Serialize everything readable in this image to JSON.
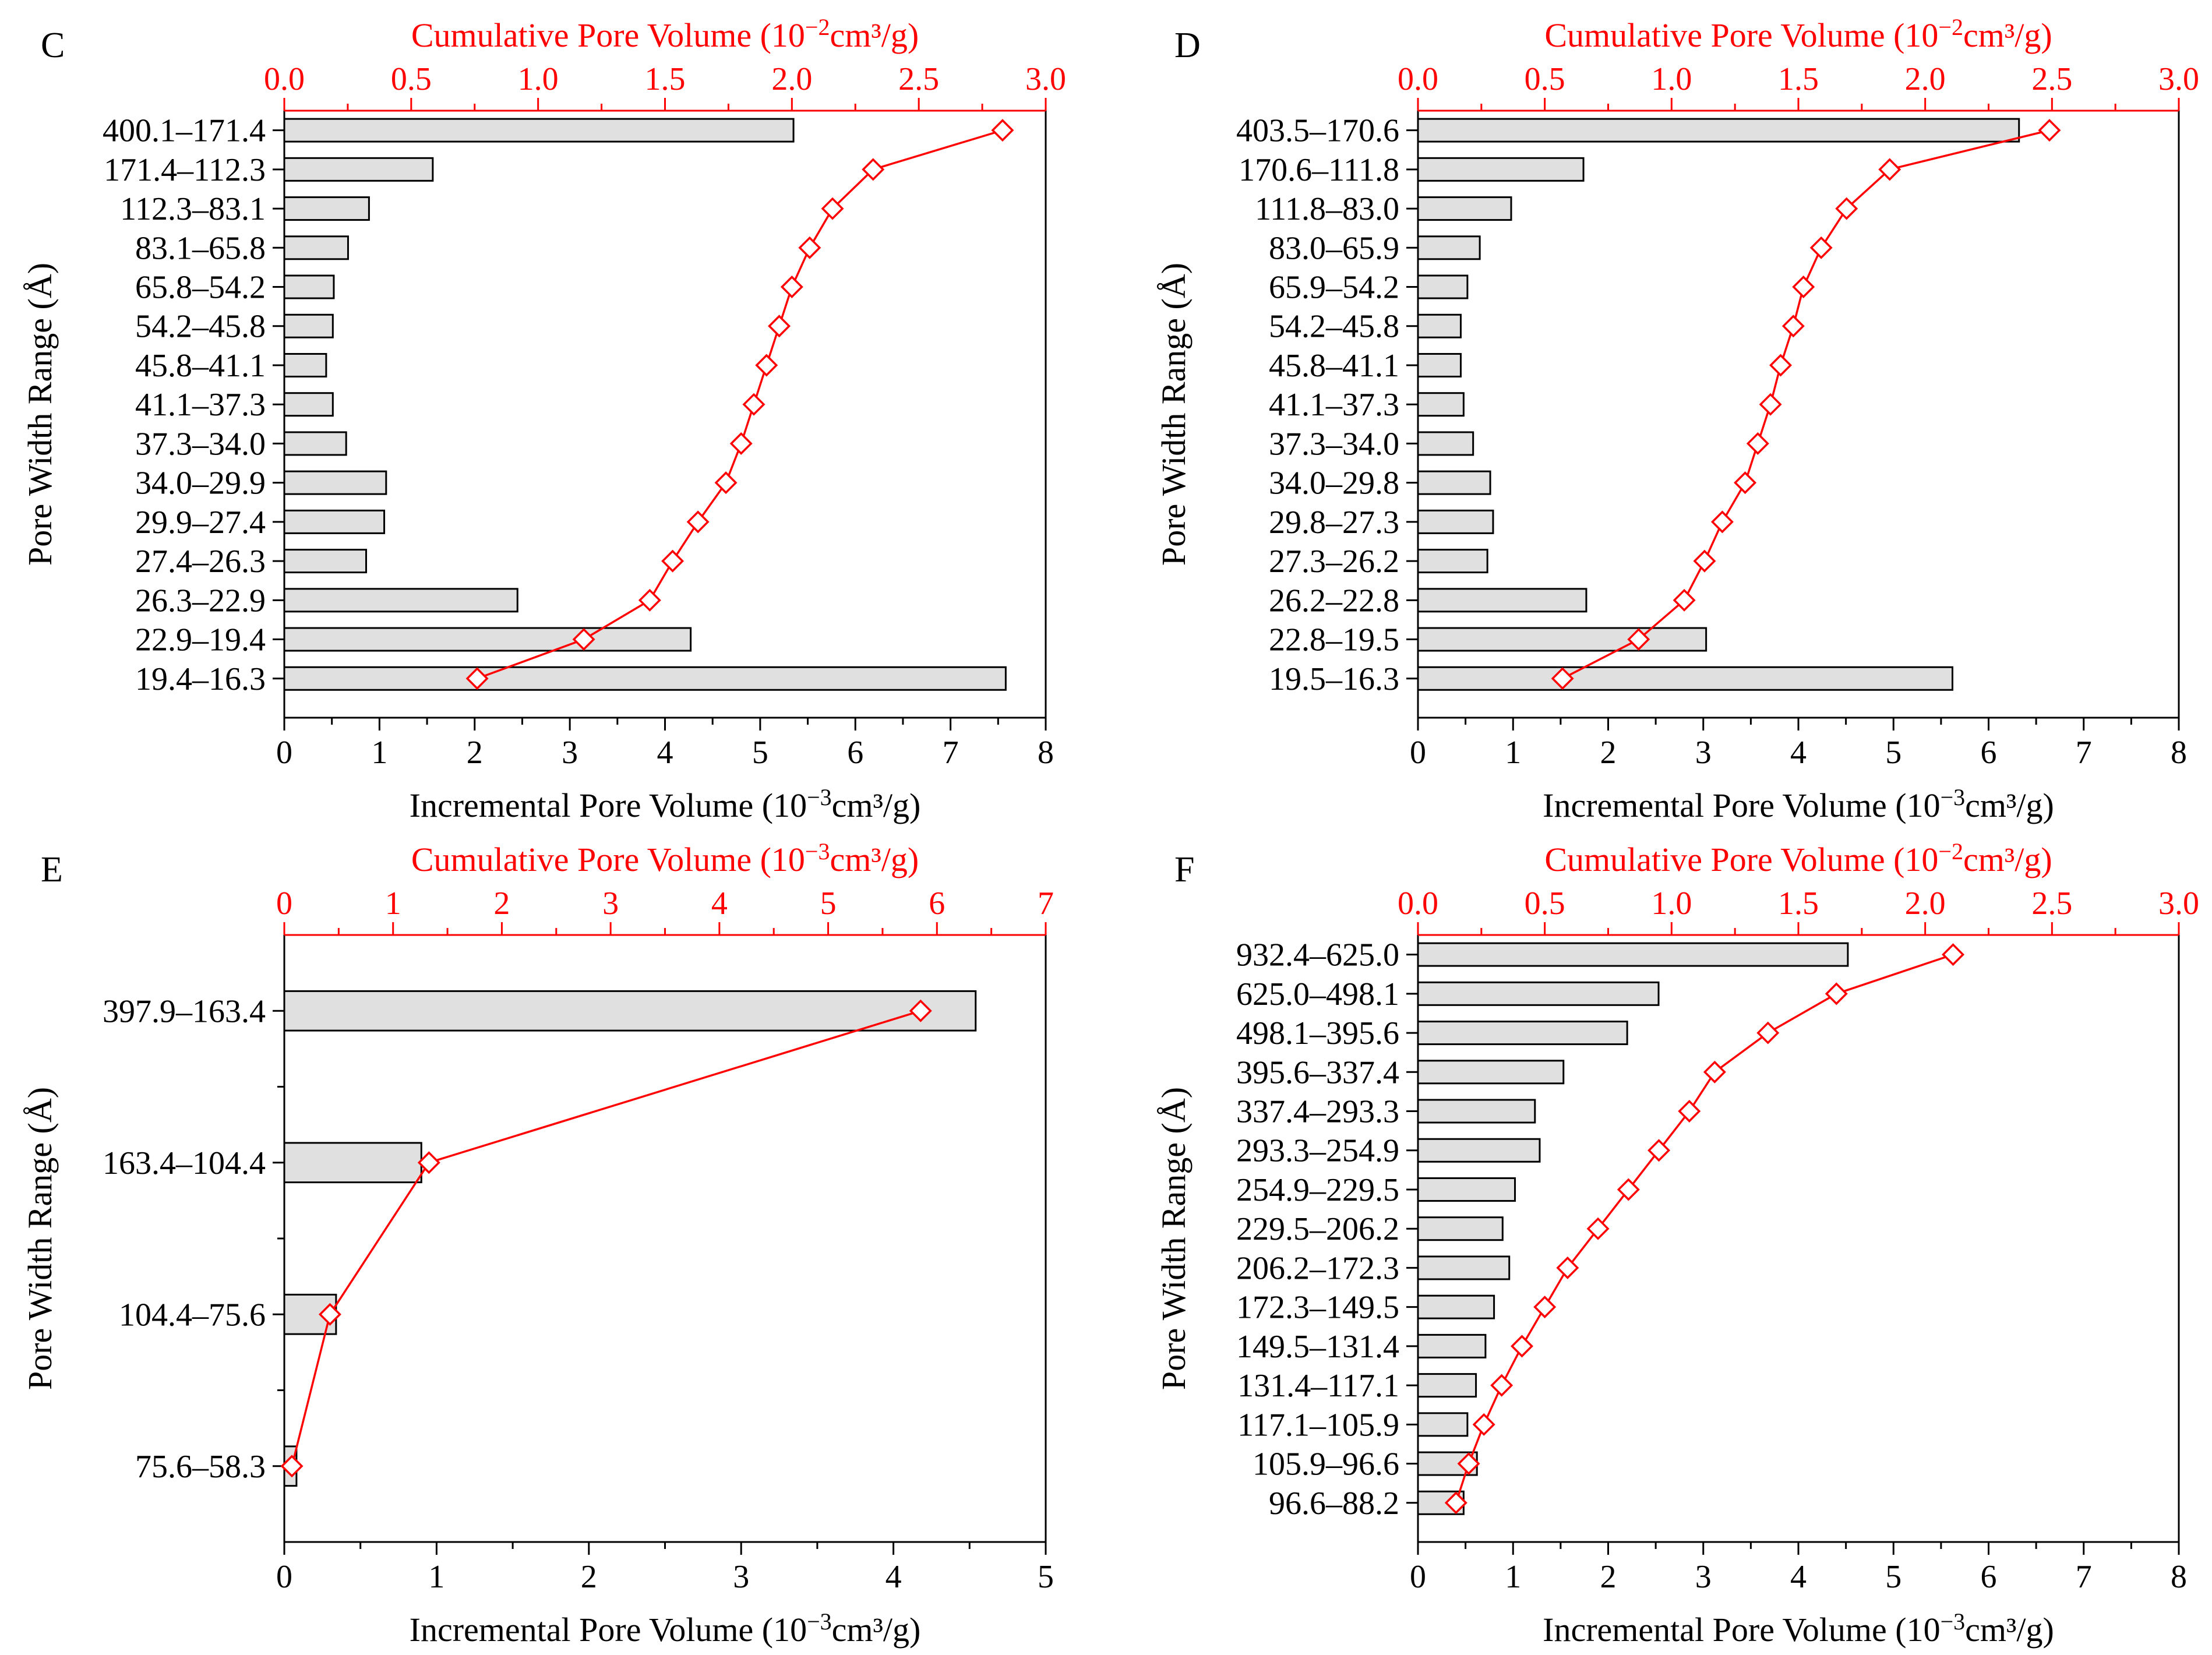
{
  "colors": {
    "bar_fill": "#e0e0e0",
    "bar_stroke": "#000000",
    "line": "#ff0000",
    "axis": "#000000",
    "top_axis": "#ff0000"
  },
  "chart_data": [
    {
      "panel_label": "C",
      "type": "bar",
      "orientation": "horizontal",
      "ylabel": "Pore Width Range (Å)",
      "xlabel_bottom": {
        "base": "Incremental Pore Volume (10",
        "exp": "−3",
        "unit": "cm³/g)"
      },
      "xlabel_top": {
        "base": "Cumulative Pore Volume (10",
        "exp": "−2",
        "unit": "cm³/g)"
      },
      "xlim_bottom": [
        0,
        8
      ],
      "xticks_bottom": [
        "0",
        "1",
        "2",
        "3",
        "4",
        "5",
        "6",
        "7",
        "8"
      ],
      "xlim_top": [
        0,
        3
      ],
      "xticks_top": [
        "0.0",
        "0.5",
        "1.0",
        "1.5",
        "2.0",
        "2.5",
        "3.0"
      ],
      "categories": [
        "400.1–171.4",
        "171.4–112.3",
        "112.3–83.1",
        "83.1–65.8",
        "65.8–54.2",
        "54.2–45.8",
        "45.8–41.1",
        "41.1–37.3",
        "37.3–34.0",
        "34.0–29.9",
        "29.9–27.4",
        "27.4–26.3",
        "26.3–22.9",
        "22.9–19.4",
        "19.4–16.3"
      ],
      "incremental": [
        5.35,
        1.56,
        0.89,
        0.67,
        0.52,
        0.51,
        0.44,
        0.51,
        0.65,
        1.07,
        1.05,
        0.86,
        2.45,
        4.27,
        7.58
      ],
      "cumulative": [
        2.83,
        2.32,
        2.16,
        2.07,
        2.0,
        1.95,
        1.9,
        1.85,
        1.8,
        1.74,
        1.63,
        1.53,
        1.44,
        1.18,
        0.76
      ]
    },
    {
      "panel_label": "D",
      "type": "bar",
      "orientation": "horizontal",
      "ylabel": "Pore Width Range (Å)",
      "xlabel_bottom": {
        "base": "Incremental Pore Volume (10",
        "exp": "−3",
        "unit": "cm³/g)"
      },
      "xlabel_top": {
        "base": "Cumulative Pore Volume (10",
        "exp": "−2",
        "unit": "cm³/g)"
      },
      "xlim_bottom": [
        0,
        8
      ],
      "xticks_bottom": [
        "0",
        "1",
        "2",
        "3",
        "4",
        "5",
        "6",
        "7",
        "8"
      ],
      "xlim_top": [
        0,
        3
      ],
      "xticks_top": [
        "0.0",
        "0.5",
        "1.0",
        "1.5",
        "2.0",
        "2.5",
        "3.0"
      ],
      "categories": [
        "403.5–170.6",
        "170.6–111.8",
        "111.8–83.0",
        "83.0–65.9",
        "65.9–54.2",
        "54.2–45.8",
        "45.8–41.1",
        "41.1–37.3",
        "37.3–34.0",
        "34.0–29.8",
        "29.8–27.3",
        "27.3–26.2",
        "26.2–22.8",
        "22.8–19.5",
        "19.5–16.3"
      ],
      "incremental": [
        6.32,
        1.74,
        0.98,
        0.65,
        0.52,
        0.45,
        0.45,
        0.48,
        0.58,
        0.76,
        0.79,
        0.73,
        1.77,
        3.03,
        5.62
      ],
      "cumulative": [
        2.49,
        1.86,
        1.69,
        1.59,
        1.52,
        1.48,
        1.43,
        1.39,
        1.34,
        1.29,
        1.2,
        1.13,
        1.05,
        0.87,
        0.57
      ]
    },
    {
      "panel_label": "E",
      "type": "bar",
      "orientation": "horizontal",
      "ylabel": "Pore Width Range (Å)",
      "xlabel_bottom": {
        "base": "Incremental Pore Volume (10",
        "exp": "−3",
        "unit": "cm³/g)"
      },
      "xlabel_top": {
        "base": "Cumulative Pore Volume (10",
        "exp": "−3",
        "unit": "cm³/g)"
      },
      "xlim_bottom": [
        0,
        5
      ],
      "xticks_bottom": [
        "0",
        "1",
        "2",
        "3",
        "4",
        "5"
      ],
      "xlim_top": [
        0,
        7
      ],
      "xticks_top": [
        "0",
        "1",
        "2",
        "3",
        "4",
        "5",
        "6",
        "7"
      ],
      "categories": [
        "397.9–163.4",
        "163.4–104.4",
        "104.4–75.6",
        "75.6–58.3"
      ],
      "incremental": [
        4.54,
        0.9,
        0.34,
        0.08
      ],
      "cumulative": [
        5.85,
        1.33,
        0.42,
        0.07
      ]
    },
    {
      "panel_label": "F",
      "type": "bar",
      "orientation": "horizontal",
      "ylabel": "Pore Width Range (Å)",
      "xlabel_bottom": {
        "base": "Incremental Pore Volume (10",
        "exp": "−3",
        "unit": "cm³/g)"
      },
      "xlabel_top": {
        "base": "Cumulative Pore Volume (10",
        "exp": "−2",
        "unit": "cm³/g)"
      },
      "xlim_bottom": [
        0,
        8
      ],
      "xticks_bottom": [
        "0",
        "1",
        "2",
        "3",
        "4",
        "5",
        "6",
        "7",
        "8"
      ],
      "xlim_top": [
        0,
        3
      ],
      "xticks_top": [
        "0.0",
        "0.5",
        "1.0",
        "1.5",
        "2.0",
        "2.5",
        "3.0"
      ],
      "categories": [
        "932.4–625.0",
        "625.0–498.1",
        "498.1–395.6",
        "395.6–337.4",
        "337.4–293.3",
        "293.3–254.9",
        "254.9–229.5",
        "229.5–206.2",
        "206.2–172.3",
        "172.3–149.5",
        "149.5–131.4",
        "131.4–117.1",
        "117.1–105.9",
        "105.9–96.6",
        "96.6–88.2"
      ],
      "incremental": [
        4.52,
        2.53,
        2.2,
        1.53,
        1.23,
        1.28,
        1.02,
        0.89,
        0.96,
        0.8,
        0.71,
        0.61,
        0.52,
        0.62,
        0.48
      ],
      "cumulative": [
        2.11,
        1.65,
        1.38,
        1.17,
        1.07,
        0.95,
        0.83,
        0.71,
        0.59,
        0.5,
        0.41,
        0.33,
        0.26,
        0.2,
        0.15
      ]
    }
  ]
}
